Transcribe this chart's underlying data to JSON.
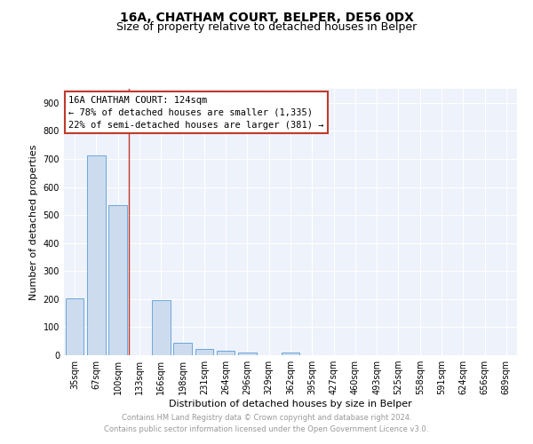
{
  "title1": "16A, CHATHAM COURT, BELPER, DE56 0DX",
  "title2": "Size of property relative to detached houses in Belper",
  "xlabel": "Distribution of detached houses by size in Belper",
  "ylabel": "Number of detached properties",
  "categories": [
    "35sqm",
    "67sqm",
    "100sqm",
    "133sqm",
    "166sqm",
    "198sqm",
    "231sqm",
    "264sqm",
    "296sqm",
    "329sqm",
    "362sqm",
    "395sqm",
    "427sqm",
    "460sqm",
    "493sqm",
    "525sqm",
    "558sqm",
    "591sqm",
    "624sqm",
    "656sqm",
    "689sqm"
  ],
  "values": [
    203,
    714,
    536,
    0,
    196,
    44,
    21,
    15,
    11,
    0,
    9,
    0,
    0,
    0,
    0,
    0,
    0,
    0,
    0,
    0,
    0
  ],
  "bar_color": "#ccdcee",
  "bar_edge_color": "#5b9bd5",
  "vline_x": 2.5,
  "vline_color": "#c0392b",
  "annotation_line1": "16A CHATHAM COURT: 124sqm",
  "annotation_line2": "← 78% of detached houses are smaller (1,335)",
  "annotation_line3": "22% of semi-detached houses are larger (381) →",
  "annotation_box_color": "#c0392b",
  "ylim": [
    0,
    950
  ],
  "yticks": [
    0,
    100,
    200,
    300,
    400,
    500,
    600,
    700,
    800,
    900
  ],
  "background_color": "#eef2fb",
  "grid_color": "#ffffff",
  "footer_line1": "Contains HM Land Registry data © Crown copyright and database right 2024.",
  "footer_line2": "Contains public sector information licensed under the Open Government Licence v3.0.",
  "title1_fontsize": 10,
  "title2_fontsize": 9,
  "label_fontsize": 8,
  "tick_fontsize": 7,
  "footer_fontsize": 6,
  "annot_fontsize": 7.5
}
